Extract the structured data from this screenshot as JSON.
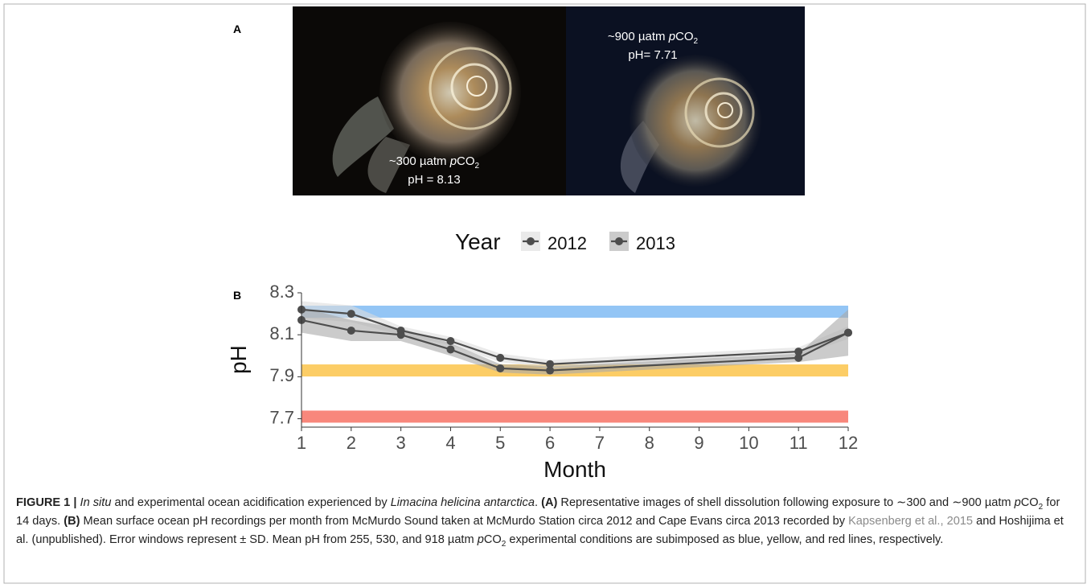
{
  "panel_a": {
    "label": "A",
    "left_label": {
      "parts": [
        "~300 µatm ",
        "p",
        "CO",
        "2"
      ],
      "ph": "pH = 8.13"
    },
    "right_label": {
      "parts": [
        "~900 µatm ",
        "p",
        "CO",
        "2"
      ],
      "ph": "pH= 7.71"
    }
  },
  "chart_data": {
    "type": "line",
    "panel_label": "B",
    "x_label": "Month",
    "y_label": "pH",
    "legend_title": "Year",
    "x": [
      1,
      2,
      3,
      4,
      5,
      6,
      11,
      12
    ],
    "series": [
      {
        "name": "2012",
        "color": "#4d4d4d",
        "band_color": "#dcdcdc",
        "values": [
          8.22,
          8.2,
          8.12,
          8.07,
          7.99,
          7.96,
          8.02,
          8.11
        ],
        "errors": [
          0.04,
          0.04,
          0.02,
          0.02,
          0.02,
          0.02,
          0.02,
          0.03
        ]
      },
      {
        "name": "2013",
        "color": "#4d4d4d",
        "band_color": "#a9a9a9",
        "values": [
          8.17,
          8.12,
          8.1,
          8.03,
          7.94,
          7.93,
          7.99,
          8.11
        ],
        "errors": [
          0.06,
          0.05,
          0.03,
          0.03,
          0.02,
          0.02,
          0.02,
          0.11
        ]
      }
    ],
    "reference_lines": [
      {
        "value": 8.21,
        "color": "#93c5f5"
      },
      {
        "value": 7.93,
        "color": "#fccd66"
      },
      {
        "value": 7.71,
        "color": "#f8877c"
      }
    ],
    "xlim": [
      1,
      12
    ],
    "xticks": [
      1,
      2,
      3,
      4,
      5,
      6,
      7,
      8,
      9,
      10,
      11,
      12
    ],
    "ylim": [
      7.66,
      8.3
    ],
    "yticks": [
      7.7,
      7.9,
      8.1,
      8.3
    ],
    "grid": false
  },
  "caption": [
    "FIGURE 1 |",
    "In situ",
    " and experimental ocean acidification experienced by ",
    "Limacina helicina antarctica",
    ". ",
    "(A)",
    " Representative images of shell dissolution following exposure to ∼300 and ∼900 µatm ",
    "p",
    "CO",
    "2",
    " for 14 days. ",
    "(B)",
    " Mean surface ocean pH recordings per month from McMurdo Sound taken at McMurdo Station circa 2012 and Cape Evans circa 2013 recorded by ",
    "Kapsenberg et al., 2015",
    " and Hoshijima et al. (unpublished). Error windows represent ± SD. Mean pH from 255, 530, and 918 µatm ",
    "p",
    "CO",
    "2",
    " experimental conditions are subimposed as blue, yellow, and red lines, respectively."
  ]
}
